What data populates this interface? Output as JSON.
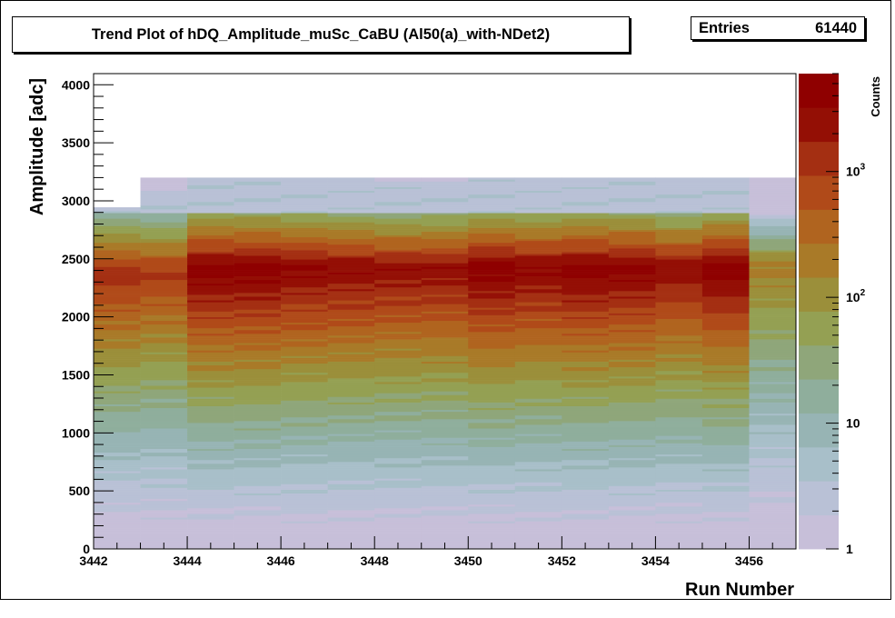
{
  "title": "Trend Plot of hDQ_Amplitude_muSc_CaBU (Al50(a)_with-NDet2)",
  "stats": {
    "entries_label": "Entries",
    "entries_value": "61440"
  },
  "chart_data": {
    "type": "heatmap",
    "title": "Trend Plot of hDQ_Amplitude_muSc_CaBU (Al50(a)_with-NDet2)",
    "xlabel": "Run Number",
    "ylabel": "Amplitude [adc]",
    "zlabel": "Counts",
    "xlim": [
      3442,
      3457
    ],
    "ylim": [
      0,
      4096
    ],
    "zscale": "log",
    "zlim": [
      1,
      6000
    ],
    "x_ticks": [
      3442,
      3444,
      3446,
      3448,
      3450,
      3452,
      3454,
      3456
    ],
    "y_ticks": [
      0,
      500,
      1000,
      1500,
      2000,
      2500,
      3000,
      3500,
      4000
    ],
    "z_ticks": [
      "1",
      "10",
      "10^2",
      "10^3"
    ],
    "runs": [
      3442,
      3443,
      3444,
      3445,
      3446,
      3447,
      3448,
      3449,
      3450,
      3451,
      3452,
      3453,
      3454,
      3455,
      3456
    ],
    "occupied_top": [
      2940,
      3190,
      3200,
      3200,
      3200,
      3200,
      3200,
      3200,
      3200,
      3200,
      3200,
      3200,
      3200,
      3200,
      3190
    ],
    "peak_amplitude": [
      2380,
      2400,
      2420,
      2420,
      2420,
      2420,
      2420,
      2420,
      2420,
      2420,
      2420,
      2420,
      2420,
      2420,
      2450
    ],
    "peak_counts_approx": [
      1500,
      1200,
      5000,
      5000,
      4000,
      3500,
      3000,
      3000,
      5000,
      4000,
      5000,
      4500,
      3000,
      5000,
      200
    ],
    "palette": [
      "#c7bfd9",
      "#b9c1d6",
      "#a8bfc9",
      "#97b4b4",
      "#8fae9c",
      "#8fa67a",
      "#94a053",
      "#9b8f3a",
      "#a97a28",
      "#b0641f",
      "#b04a19",
      "#a42f12",
      "#940f05",
      "#8f0000"
    ],
    "grid": false,
    "legend": "colorbar-right"
  }
}
